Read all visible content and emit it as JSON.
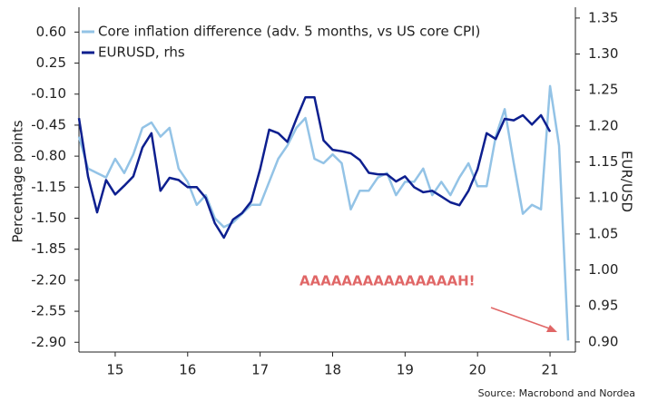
{
  "chart_data": {
    "type": "line",
    "legend": "upper left",
    "ylabel": "Percentage points",
    "y2label": "EUR/USD",
    "annotation": "AAAAAAAAAAAAAAAH!",
    "source": "Source: Macrobond and Nordea",
    "x": [
      2015.0,
      2015.125,
      2015.25,
      2015.375,
      2015.5,
      2015.625,
      2015.75,
      2015.875,
      2016.0,
      2016.125,
      2016.25,
      2016.375,
      2016.5,
      2016.625,
      2016.75,
      2016.875,
      2017.0,
      2017.125,
      2017.25,
      2017.375,
      2017.5,
      2017.625,
      2017.75,
      2017.875,
      2018.0,
      2018.125,
      2018.25,
      2018.375,
      2018.5,
      2018.625,
      2018.75,
      2018.875,
      2019.0,
      2019.125,
      2019.25,
      2019.375,
      2019.5,
      2019.625,
      2019.75,
      2019.875,
      2020.0,
      2020.125,
      2020.25,
      2020.375,
      2020.5,
      2020.625,
      2020.75,
      2020.875,
      2021.0,
      2021.125,
      2021.25,
      2021.375,
      2021.5,
      2021.625,
      2021.75
    ],
    "xlim": [
      2015,
      2021.85
    ],
    "xticks": [
      {
        "value": 2015.5,
        "label": "15"
      },
      {
        "value": 2016.5,
        "label": "16"
      },
      {
        "value": 2017.5,
        "label": "17"
      },
      {
        "value": 2018.5,
        "label": "18"
      },
      {
        "value": 2019.5,
        "label": "19"
      },
      {
        "value": 2020.5,
        "label": "20"
      },
      {
        "value": 2021.5,
        "label": "21"
      }
    ],
    "ylim": [
      -3.01,
      0.88
    ],
    "yticks": [
      {
        "value": 0.6,
        "label": "0.60"
      },
      {
        "value": 0.25,
        "label": "0.25"
      },
      {
        "value": -0.1,
        "label": "-0.10"
      },
      {
        "value": -0.45,
        "label": "-0.45"
      },
      {
        "value": -0.8,
        "label": "-0.80"
      },
      {
        "value": -1.15,
        "label": "-1.15"
      },
      {
        "value": -1.5,
        "label": "-1.50"
      },
      {
        "value": -1.85,
        "label": "-1.85"
      },
      {
        "value": -2.2,
        "label": "-2.20"
      },
      {
        "value": -2.55,
        "label": "-2.55"
      },
      {
        "value": -2.9,
        "label": "-2.90"
      }
    ],
    "y2lim": [
      0.886,
      1.365
    ],
    "y2ticks": [
      {
        "value": 1.35,
        "label": "1.35"
      },
      {
        "value": 1.3,
        "label": "1.30"
      },
      {
        "value": 1.25,
        "label": "1.25"
      },
      {
        "value": 1.2,
        "label": "1.20"
      },
      {
        "value": 1.15,
        "label": "1.15"
      },
      {
        "value": 1.1,
        "label": "1.10"
      },
      {
        "value": 1.05,
        "label": "1.05"
      },
      {
        "value": 1.0,
        "label": "1.00"
      },
      {
        "value": 0.95,
        "label": "0.95"
      },
      {
        "value": 0.9,
        "label": "0.90"
      }
    ],
    "series": [
      {
        "name": "Core inflation difference (adv. 5 months, vs US core CPI)",
        "color": "#93c3e6",
        "values": [
          -0.58,
          -0.94,
          -0.99,
          -1.04,
          -0.83,
          -0.99,
          -0.78,
          -0.48,
          -0.42,
          -0.58,
          -0.48,
          -0.94,
          -1.09,
          -1.35,
          -1.24,
          -1.5,
          -1.6,
          -1.55,
          -1.45,
          -1.35,
          -1.35,
          -1.09,
          -0.83,
          -0.68,
          -0.48,
          -0.37,
          -0.83,
          -0.88,
          -0.78,
          -0.88,
          -1.4,
          -1.19,
          -1.19,
          -1.04,
          -0.99,
          -1.24,
          -1.09,
          -1.09,
          -0.94,
          -1.24,
          -1.09,
          -1.24,
          -1.04,
          -0.88,
          -1.14,
          -1.14,
          -0.58,
          -0.27,
          -0.88,
          -1.45,
          -1.35,
          -1.4,
          -0.01,
          -0.68,
          -2.88
        ]
      },
      {
        "name": "EURUSD, rhs",
        "color": "#0d1f8f",
        "axis": "y2",
        "values": [
          1.211,
          1.13,
          1.08,
          1.125,
          1.105,
          1.117,
          1.13,
          1.17,
          1.19,
          1.11,
          1.128,
          1.125,
          1.115,
          1.115,
          1.1,
          1.065,
          1.045,
          1.07,
          1.079,
          1.095,
          1.14,
          1.195,
          1.19,
          1.178,
          1.21,
          1.24,
          1.24,
          1.18,
          1.167,
          1.165,
          1.162,
          1.153,
          1.135,
          1.133,
          1.133,
          1.123,
          1.13,
          1.115,
          1.108,
          1.11,
          1.102,
          1.094,
          1.09,
          1.11,
          1.14,
          1.19,
          1.182,
          1.21,
          1.208,
          1.215,
          1.202,
          1.215,
          1.192,
          null,
          null
        ]
      }
    ]
  }
}
